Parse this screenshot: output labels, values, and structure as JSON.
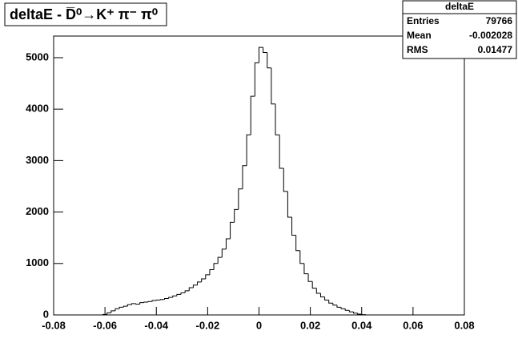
{
  "chart_data": {
    "type": "histogram",
    "title": "deltaE - D̅⁰→K⁺ π⁻ π⁰",
    "bins": [
      -0.08,
      -0.0784,
      -0.0768,
      -0.0752,
      -0.0736,
      -0.072,
      -0.0704,
      -0.0688,
      -0.0672,
      -0.0656,
      -0.064,
      -0.0624,
      -0.0608,
      -0.0592,
      -0.0576,
      -0.056,
      -0.0544,
      -0.0528,
      -0.0512,
      -0.0496,
      -0.048,
      -0.0464,
      -0.0448,
      -0.0432,
      -0.0416,
      -0.04,
      -0.0384,
      -0.0368,
      -0.0352,
      -0.0336,
      -0.032,
      -0.0304,
      -0.0288,
      -0.0272,
      -0.0256,
      -0.024,
      -0.0224,
      -0.0208,
      -0.0192,
      -0.0176,
      -0.016,
      -0.0144,
      -0.0128,
      -0.0112,
      -0.0096,
      -0.008,
      -0.0064,
      -0.0048,
      -0.0032,
      -0.0016,
      0,
      0.0016,
      0.0032,
      0.0048,
      0.0064,
      0.008,
      0.0096,
      0.0112,
      0.0128,
      0.0144,
      0.016,
      0.0176,
      0.0192,
      0.0208,
      0.0224,
      0.024,
      0.0256,
      0.0272,
      0.0288,
      0.0304,
      0.032,
      0.0336,
      0.0352,
      0.0368,
      0.0384,
      0.04,
      0.0416,
      0.0432,
      0.0448,
      0.0464,
      0.048,
      0.0496,
      0.0512,
      0.0528,
      0.0544,
      0.056,
      0.0576,
      0.0592,
      0.0608,
      0.0624,
      0.064,
      0.0656,
      0.0672,
      0.0688,
      0.0704,
      0.072,
      0.0736,
      0.0752,
      0.0768,
      0.0784,
      0.08
    ],
    "values": [
      0,
      0,
      0,
      0,
      0,
      0,
      0,
      0,
      0,
      0,
      0,
      0,
      10,
      40,
      80,
      120,
      150,
      170,
      200,
      220,
      210,
      240,
      250,
      260,
      280,
      290,
      300,
      320,
      340,
      370,
      400,
      430,
      470,
      530,
      580,
      640,
      700,
      780,
      880,
      1000,
      1120,
      1280,
      1480,
      1800,
      2050,
      2450,
      2900,
      3500,
      4250,
      4900,
      5200,
      5100,
      4800,
      4100,
      3500,
      2850,
      2400,
      1900,
      1550,
      1250,
      1000,
      800,
      650,
      520,
      420,
      350,
      290,
      230,
      190,
      150,
      120,
      90,
      60,
      35,
      15,
      5,
      0,
      0,
      0,
      0,
      0,
      0,
      0,
      0,
      0,
      0,
      0,
      0,
      0,
      0,
      0,
      0,
      0,
      0,
      0,
      0,
      0,
      0,
      0,
      0
    ],
    "color": "#000000",
    "xlim": [
      -0.08,
      0.08
    ],
    "xticks": [
      -0.08,
      -0.06,
      -0.04,
      -0.02,
      0,
      0.02,
      0.04,
      0.06,
      0.08
    ],
    "ylim": [
      0,
      5420
    ],
    "yticks": [
      0,
      1000,
      2000,
      3000,
      4000,
      5000
    ],
    "stats": {
      "name": "deltaE",
      "rows": [
        {
          "label": "Entries",
          "value": 79766
        },
        {
          "label": "Mean",
          "value": -0.002028
        },
        {
          "label": "RMS",
          "value": 0.01477
        }
      ]
    }
  }
}
